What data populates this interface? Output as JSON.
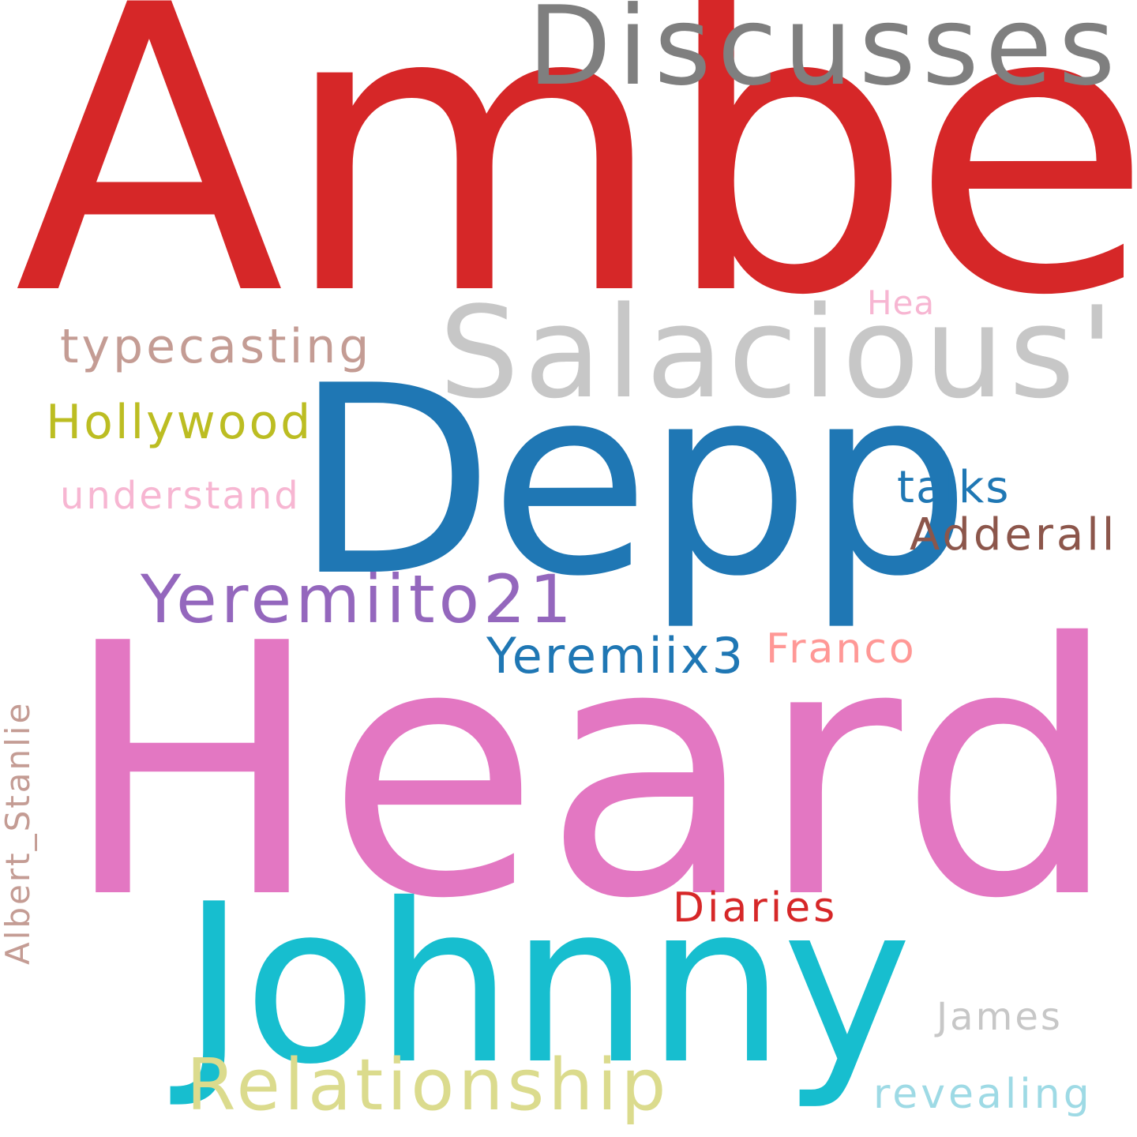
{
  "words": [
    {
      "id": "amber",
      "text": "Amber",
      "color": "#d62728",
      "rotated": false
    },
    {
      "id": "discusses",
      "text": "Discusses",
      "color": "#7f7f7f",
      "rotated": false
    },
    {
      "id": "salacious",
      "text": "Salacious'",
      "color": "#c7c7c7",
      "rotated": false
    },
    {
      "id": "hea",
      "text": "Hea",
      "color": "#f7b6d2",
      "rotated": false
    },
    {
      "id": "typecasting",
      "text": "typecasting",
      "color": "#c49c94",
      "rotated": false
    },
    {
      "id": "hollywood",
      "text": "Hollywood",
      "color": "#bcbd22",
      "rotated": false
    },
    {
      "id": "depp",
      "text": "Depp",
      "color": "#1f77b4",
      "rotated": false
    },
    {
      "id": "talks",
      "text": "talks",
      "color": "#1f77b4",
      "rotated": false
    },
    {
      "id": "understand",
      "text": "understand",
      "color": "#f7b6d2",
      "rotated": false
    },
    {
      "id": "adderall",
      "text": "Adderall",
      "color": "#8c564b",
      "rotated": false
    },
    {
      "id": "yeremiito21",
      "text": "Yeremiito21",
      "color": "#9467bd",
      "rotated": false
    },
    {
      "id": "yeremiix3",
      "text": "Yeremiix3",
      "color": "#1f77b4",
      "rotated": false
    },
    {
      "id": "franco",
      "text": "Franco",
      "color": "#ff9896",
      "rotated": false
    },
    {
      "id": "heard",
      "text": "Heard",
      "color": "#e377c2",
      "rotated": false
    },
    {
      "id": "albert",
      "text": "Albert_Stanlie",
      "color": "#c49c94",
      "rotated": true
    },
    {
      "id": "diaries",
      "text": "Diaries",
      "color": "#d62728",
      "rotated": false
    },
    {
      "id": "johnny",
      "text": "Johnny",
      "color": "#17becf",
      "rotated": false
    },
    {
      "id": "james",
      "text": "James",
      "color": "#c7c7c7",
      "rotated": false
    },
    {
      "id": "relationship",
      "text": "Relationship",
      "color": "#dbdb8d",
      "rotated": false
    },
    {
      "id": "revealing",
      "text": "revealing",
      "color": "#9edae5",
      "rotated": false
    }
  ]
}
